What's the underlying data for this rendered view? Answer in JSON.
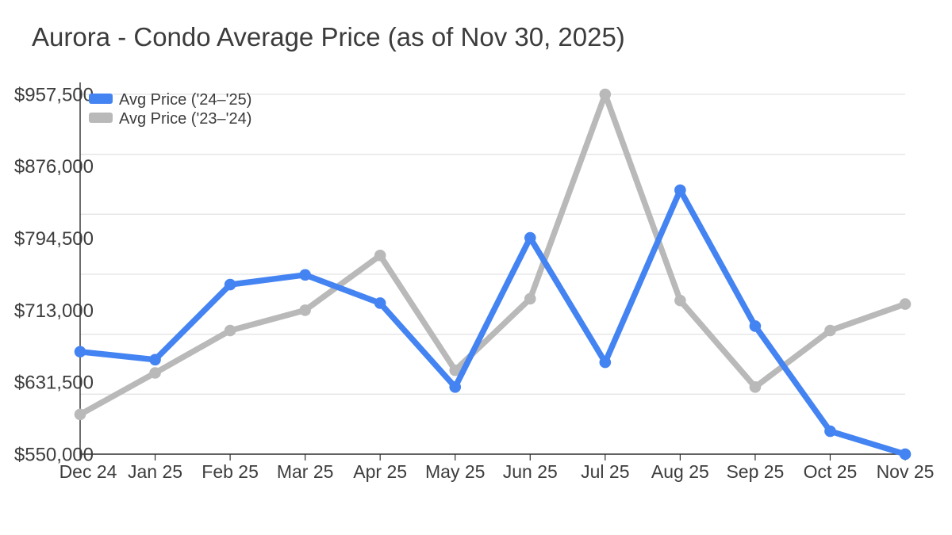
{
  "colors": {
    "background": "#ffffff",
    "axis": "#2e2e2e",
    "gridline": "#e4e4e4",
    "text": "#3d3d3d",
    "series_blue": "#4483f2",
    "series_gray": "#b9b9b9"
  },
  "chart_data": {
    "type": "line",
    "title": "Aurora - Condo Average Price (as of Nov 30, 2025)",
    "xlabel": "",
    "ylabel": "",
    "categories": [
      "Dec 24",
      "Jan 25",
      "Feb 25",
      "Mar 25",
      "Apr 25",
      "May 25",
      "Jun 25",
      "Jul 25",
      "Aug 25",
      "Sep 25",
      "Oct 25",
      "Nov 25"
    ],
    "series": [
      {
        "name": "Avg Price ('24–'25)",
        "color": "#4483f2",
        "marker": "circle",
        "values": [
          666000,
          657000,
          742000,
          753000,
          721000,
          626000,
          795000,
          654000,
          849000,
          695000,
          576000,
          550000
        ]
      },
      {
        "name": "Avg Price ('23–'24)",
        "color": "#b9b9b9",
        "marker": "circle",
        "values": [
          595000,
          642000,
          690000,
          713000,
          775000,
          645000,
          726000,
          957500,
          724000,
          626000,
          690000,
          720000
        ]
      }
    ],
    "y_tick_labels": [
      "$957,500",
      "$876,000",
      "$794,500",
      "$713,000",
      "$631,500",
      "$550,000"
    ],
    "y_tick_values": [
      957500,
      876000,
      794500,
      713000,
      631500,
      550000
    ],
    "ylim": [
      550000,
      957500
    ],
    "grid": "horizontal",
    "legend_position": "top-left"
  }
}
